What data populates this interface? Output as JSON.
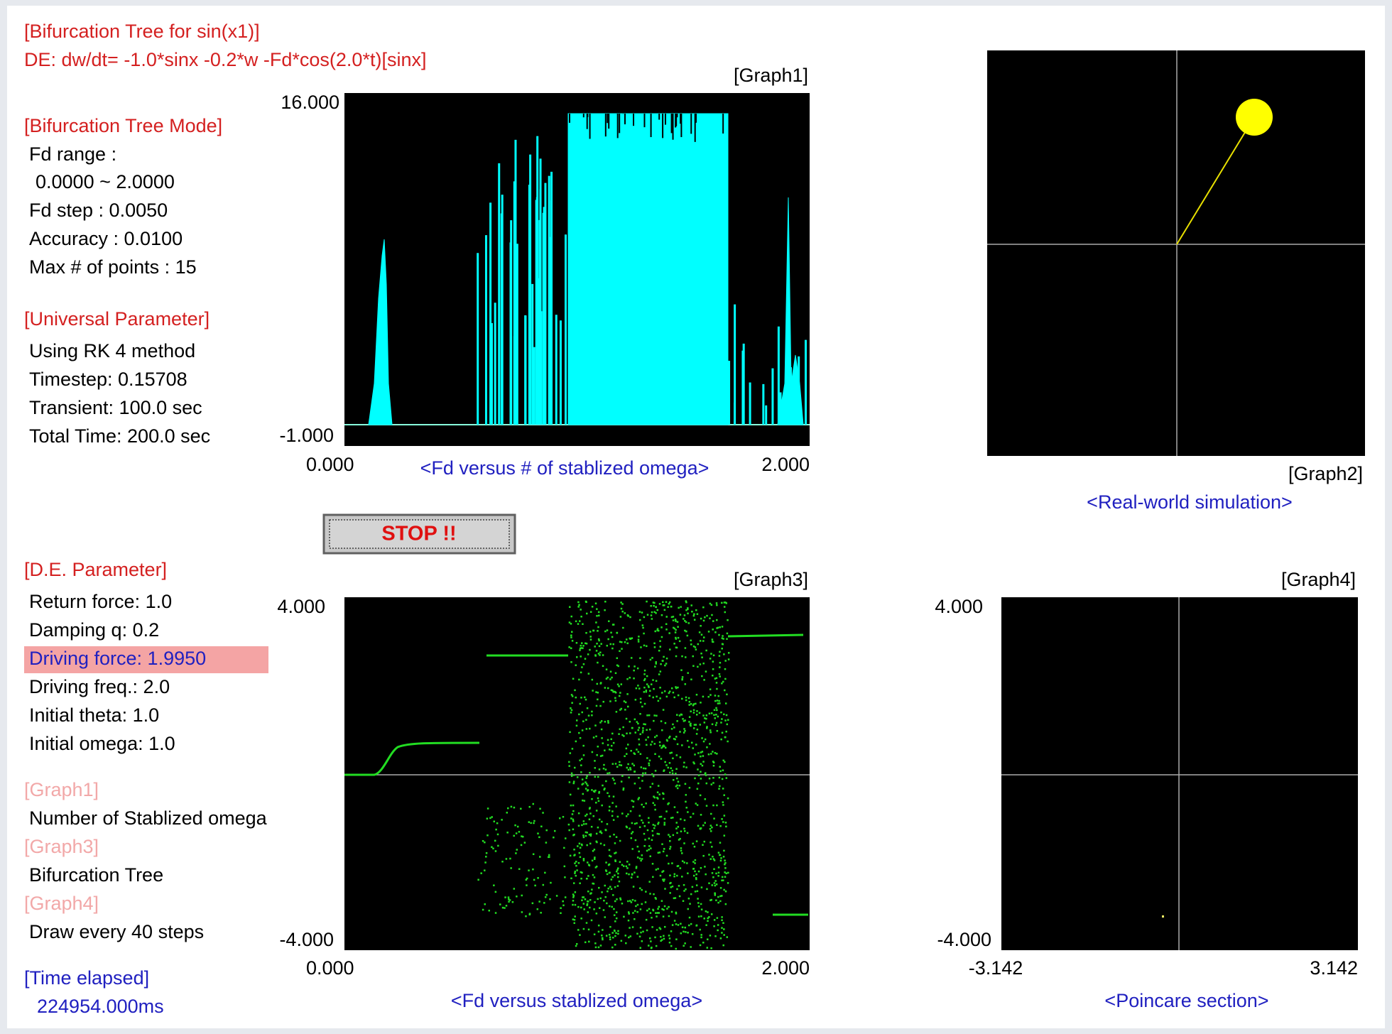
{
  "header": {
    "title": "[Bifurcation Tree for sin(x1)]",
    "equation": "DE: dw/dt= -1.0*sinx -0.2*w -Fd*cos(2.0*t)[sinx]"
  },
  "mode": {
    "heading": "[Bifurcation Tree Mode]",
    "lines": [
      "Fd range :",
      "0.0000 ~ 2.0000",
      "Fd step : 0.0050",
      "Accuracy : 0.0100",
      "Max  # of points : 15"
    ]
  },
  "universal": {
    "heading": "[Universal Parameter]",
    "lines": [
      "Using RK 4 method",
      "Timestep: 0.15708",
      "Transient: 100.0 sec",
      "Total Time: 200.0 sec"
    ]
  },
  "button": "STOP !!",
  "de": {
    "heading": "[D.E. Parameter]",
    "lines": [
      "Return force: 1.0",
      "Damping q: 0.2",
      "Driving force: 1.9950",
      "Driving freq.: 2.0",
      "Initial theta: 1.0",
      "Initial omega: 1.0"
    ]
  },
  "legend": [
    {
      "graph": "[Graph1]",
      "desc": "Number of Stablized omega"
    },
    {
      "graph": "[Graph3]",
      "desc": "Bifurcation Tree"
    },
    {
      "graph": "[Graph4]",
      "desc": "Draw every 40  steps"
    }
  ],
  "time": {
    "heading": "[Time elapsed]",
    "value": "224954.000ms"
  },
  "graph1": {
    "label": "[Graph1]",
    "ymax": "16.000",
    "ymin": "-1.000",
    "xmin": "0.000",
    "xmax": "2.000",
    "caption": "<Fd versus # of stablized omega>"
  },
  "graph2": {
    "label": "[Graph2]",
    "caption": "<Real-world simulation>"
  },
  "graph3": {
    "label": "[Graph3]",
    "ymax": "4.000",
    "ymin": "-4.000",
    "xmin": "0.000",
    "xmax": "2.000",
    "caption": "<Fd versus stablized omega>"
  },
  "graph4": {
    "label": "[Graph4]",
    "ymax": "4.000",
    "ymin": "-4.000",
    "xmin": "-3.142",
    "xmax": "3.142",
    "caption": "<Poincare section>"
  }
}
